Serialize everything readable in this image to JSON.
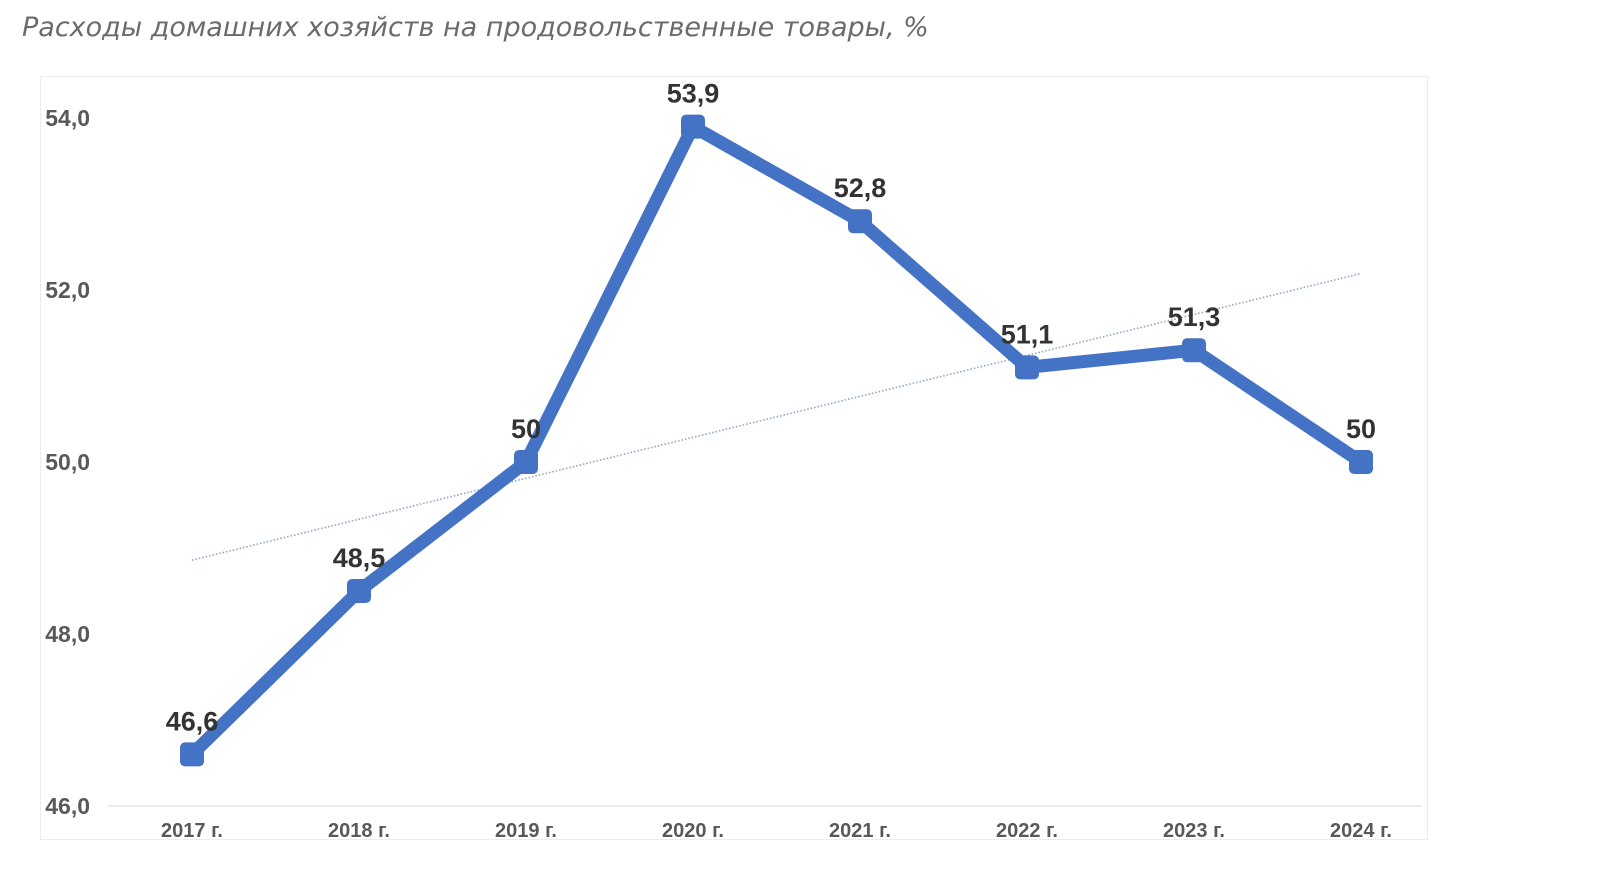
{
  "title": "Расходы домашних хозяйств на продовольственные товары, %",
  "colors": {
    "series": "#4472c4",
    "trendline": "#8fa3c8",
    "tick_text": "#595959",
    "label_text": "#333333",
    "baseline": "#d9d9d9"
  },
  "chart_data": {
    "type": "line",
    "title": "Расходы домашних хозяйств на продовольственные товары, %",
    "xlabel": "",
    "ylabel": "",
    "categories": [
      "2017 г.",
      "2018 г.",
      "2019 г.",
      "2020 г.",
      "2021 г.",
      "2022 г.",
      "2023 г.",
      "2024 г."
    ],
    "series": [
      {
        "values": [
          46.6,
          48.5,
          50,
          53.9,
          52.8,
          51.1,
          51.3,
          50
        ],
        "labels": [
          "46,6",
          "48,5",
          "50",
          "53,9",
          "52,8",
          "51,1",
          "51,3",
          "50"
        ],
        "color": "#4472c4",
        "marker": "square"
      }
    ],
    "trendline": {
      "type": "linear",
      "style": "dotted",
      "color": "#8fa3c8"
    },
    "yticks": [
      46.0,
      48.0,
      50.0,
      52.0,
      54.0
    ],
    "ytick_labels": [
      "46,0",
      "48,0",
      "50,0",
      "52,0",
      "54,0"
    ],
    "ylim": [
      46.0,
      54.5
    ],
    "grid": false,
    "legend": "none"
  }
}
